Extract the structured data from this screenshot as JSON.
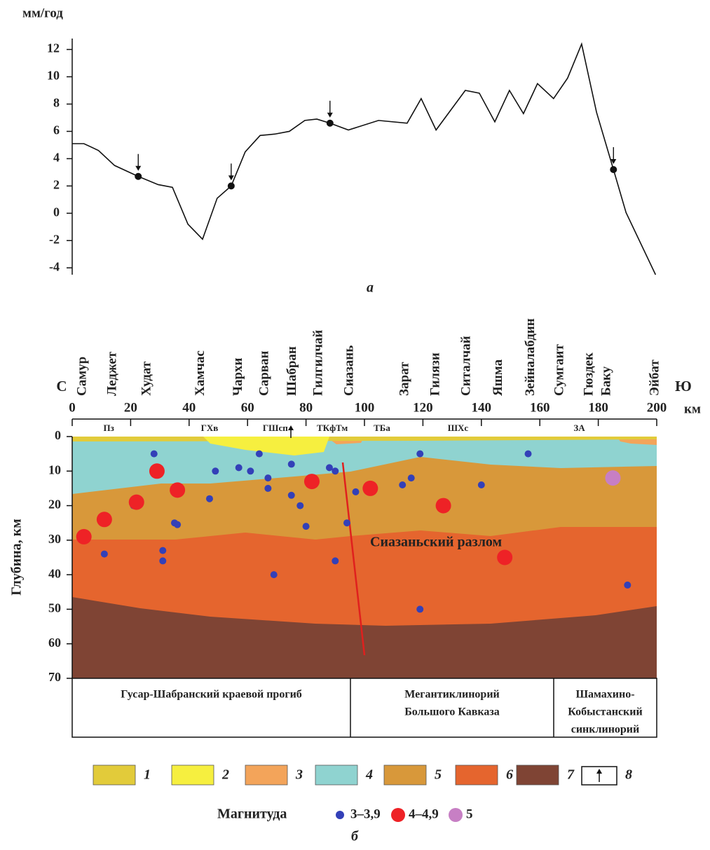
{
  "chart_data": [
    {
      "type": "line",
      "y_label": "мм/год",
      "caption": "а",
      "color": "#111111",
      "x": [
        0,
        4,
        9,
        14.5,
        22.6,
        29.4,
        34.3,
        39.6,
        44.6,
        49.6,
        54.4,
        59.2,
        64.3,
        69.3,
        74.3,
        79.6,
        83.7,
        88.2,
        94.5,
        104.8,
        114.6,
        119.4,
        124.5,
        134.5,
        139.3,
        144.6,
        149.6,
        154.4,
        159.2,
        164.7,
        169.5,
        174.3,
        179.4,
        185.2,
        189.5,
        199.6
      ],
      "values": [
        5.1,
        5.1,
        4.6,
        3.5,
        2.7,
        2.1,
        1.9,
        -0.8,
        -1.9,
        1.1,
        2.0,
        4.5,
        5.7,
        5.8,
        6.0,
        6.8,
        6.9,
        6.6,
        6.1,
        6.8,
        6.6,
        8.4,
        6.1,
        9.0,
        8.8,
        6.7,
        9.0,
        7.3,
        9.5,
        8.4,
        9.9,
        12.4,
        7.4,
        3.2,
        0.05,
        -4.5
      ],
      "markers": {
        "x": [
          22.6,
          54.4,
          88.2,
          185.2
        ],
        "values": [
          2.7,
          2.0,
          6.6,
          3.2
        ]
      },
      "xlim": [
        0,
        200
      ],
      "ylim": [
        -4.5,
        12.8
      ],
      "yticks": [
        -4,
        -2,
        0,
        2,
        4,
        6,
        8,
        10,
        12
      ]
    },
    {
      "type": "scatter",
      "caption": "б",
      "x_label_left": "С",
      "x_label_right": "Ю",
      "x_unit": "км",
      "y_label": "Глубина, км",
      "xlim": [
        0,
        200
      ],
      "xticks": [
        0,
        20,
        40,
        60,
        80,
        100,
        120,
        140,
        160,
        180,
        200
      ],
      "ylim": [
        0,
        70
      ],
      "yticks": [
        0,
        10,
        20,
        30,
        40,
        50,
        60,
        70
      ],
      "places": {
        "names": [
          "Самур",
          "Леджет",
          "Худат",
          "Хамчас",
          "Чархи",
          "Сарван",
          "Шабран",
          "Гилгилчай",
          "Сиазань",
          "Зарат",
          "Гилязи",
          "Ситалчай",
          "Яшма",
          "Зейналабдин",
          "Сумгаит",
          "Гюздек",
          "Баку",
          "Эйбат"
        ],
        "x": [
          3.6,
          14,
          25.7,
          44,
          57,
          66,
          75.5,
          84.5,
          95,
          114,
          124.5,
          135,
          146,
          157,
          167,
          177,
          183,
          199.5
        ]
      },
      "zones": {
        "names": [
          "Пз",
          "ГХв",
          "ГШсп",
          "ТКфТм",
          "ТБа",
          "ШХс",
          "ЗА"
        ],
        "x": [
          12.5,
          47,
          69.5,
          89,
          106,
          132,
          173.5
        ]
      },
      "annotation": "Сиазаньский разлом",
      "structures": [
        {
          "lines": [
            "Гусар-Шабранский краевой прогиб"
          ]
        },
        {
          "lines": [
            "Мегантиклинорий",
            "Большого Кавказа"
          ]
        },
        {
          "lines": [
            "Шамахино-",
            "Кобыстанский",
            "синклинорий"
          ]
        }
      ],
      "layer_legend": [
        {
          "label": "1",
          "color": "#e2cb3a"
        },
        {
          "label": "2",
          "color": "#f6ef3f"
        },
        {
          "label": "3",
          "color": "#f3a45a"
        },
        {
          "label": "4",
          "color": "#8fd3d0"
        },
        {
          "label": "5",
          "color": "#d8983a"
        },
        {
          "label": "6",
          "color": "#e5652e"
        },
        {
          "label": "7",
          "color": "#7f4434"
        },
        {
          "label": "8"
        }
      ],
      "legend_title": "Магнитуда",
      "series": [
        {
          "name": "3–3,9",
          "color": "#3340b8",
          "x": [
            28,
            49,
            57,
            61,
            64,
            67,
            67,
            75,
            75,
            78,
            80,
            88,
            90,
            47,
            90,
            94,
            97,
            113,
            116,
            119,
            140,
            156,
            31,
            31,
            35,
            36,
            21,
            69,
            11,
            119,
            190
          ],
          "values": [
            5,
            10,
            9,
            10,
            5,
            12,
            15,
            8,
            17,
            20,
            26,
            9,
            10,
            18,
            36,
            25,
            16,
            14,
            12,
            5,
            14,
            5,
            33,
            36,
            25,
            25.5,
            20,
            40,
            34,
            50,
            43
          ]
        },
        {
          "name": "4–4,9",
          "color": "#ee2226",
          "x": [
            29,
            36,
            22,
            11,
            4,
            82,
            102,
            127,
            148
          ],
          "values": [
            10,
            15.5,
            19,
            24,
            29,
            13,
            15,
            20,
            35
          ]
        },
        {
          "name": "5",
          "color": "#c77fc4",
          "x": [
            185
          ],
          "values": [
            12
          ]
        }
      ]
    }
  ]
}
